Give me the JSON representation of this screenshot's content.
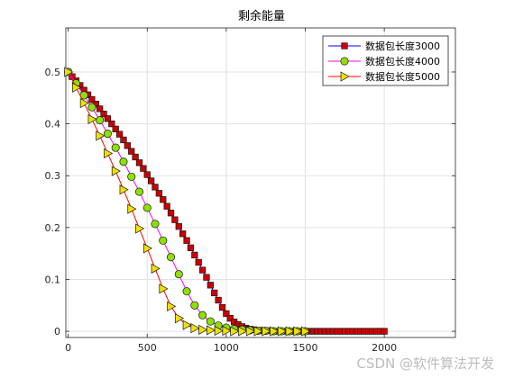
{
  "chart_data": {
    "type": "line",
    "title": "剩余能量",
    "xlabel": "",
    "ylabel": "",
    "xlim": [
      -15,
      2450
    ],
    "ylim": [
      -0.012,
      0.585
    ],
    "xticks": [
      0,
      500,
      1000,
      1500,
      2000
    ],
    "yticks": [
      0,
      0.1,
      0.2,
      0.3,
      0.4,
      0.5
    ],
    "grid": true,
    "legend_position": "top-right",
    "series": [
      {
        "name": "数据包长度3000",
        "line_color": "#0000ff",
        "marker": "square",
        "marker_fill": "#cc0000",
        "x": [
          0,
          25,
          50,
          75,
          100,
          125,
          150,
          175,
          200,
          225,
          250,
          275,
          300,
          325,
          350,
          375,
          400,
          425,
          450,
          475,
          500,
          525,
          550,
          575,
          600,
          625,
          650,
          675,
          700,
          725,
          750,
          775,
          800,
          825,
          850,
          875,
          900,
          925,
          950,
          975,
          1000,
          1025,
          1050,
          1075,
          1100,
          1125,
          1150,
          1175,
          1200,
          1225,
          1250,
          1275,
          1300,
          1325,
          1350,
          1375,
          1400,
          1425,
          1450,
          1475,
          1500,
          1525,
          1550,
          1575,
          1600,
          1625,
          1650,
          1675,
          1700,
          1725,
          1750,
          1775,
          1800,
          1825,
          1850,
          1875,
          1900,
          1925,
          1950,
          1975,
          2000
        ],
        "y": [
          0.5,
          0.491,
          0.483,
          0.474,
          0.465,
          0.456,
          0.447,
          0.438,
          0.429,
          0.419,
          0.41,
          0.4,
          0.39,
          0.38,
          0.369,
          0.358,
          0.347,
          0.336,
          0.325,
          0.314,
          0.302,
          0.29,
          0.278,
          0.266,
          0.254,
          0.241,
          0.228,
          0.215,
          0.202,
          0.188,
          0.175,
          0.161,
          0.147,
          0.133,
          0.118,
          0.104,
          0.089,
          0.074,
          0.06,
          0.046,
          0.034,
          0.025,
          0.018,
          0.013,
          0.009,
          0.006,
          0.004,
          0.003,
          0.002,
          0.001,
          0.001,
          0.001,
          0,
          0,
          0,
          0,
          0,
          0,
          0,
          0,
          0,
          0,
          0,
          0,
          0,
          0,
          0,
          0,
          0,
          0,
          0,
          0,
          0,
          0,
          0,
          0,
          0,
          0,
          0,
          0,
          0
        ]
      },
      {
        "name": "数据包长度4000",
        "line_color": "#ff00ff",
        "marker": "circle",
        "marker_fill": "#8ee000",
        "x": [
          0,
          50,
          100,
          150,
          200,
          250,
          300,
          350,
          400,
          450,
          500,
          550,
          600,
          650,
          700,
          750,
          800,
          850,
          900,
          950,
          1000,
          1050,
          1100,
          1150,
          1200,
          1250,
          1300,
          1350,
          1400,
          1450,
          1500
        ],
        "y": [
          0.5,
          0.478,
          0.455,
          0.432,
          0.407,
          0.381,
          0.354,
          0.327,
          0.298,
          0.269,
          0.238,
          0.207,
          0.175,
          0.143,
          0.11,
          0.077,
          0.05,
          0.031,
          0.019,
          0.011,
          0.007,
          0.004,
          0.003,
          0.002,
          0.001,
          0.001,
          0,
          0,
          0,
          0,
          0
        ]
      },
      {
        "name": "数据包长度5000",
        "line_color": "#ff0000",
        "marker": "triangle-right",
        "marker_fill": "#f0e000",
        "x": [
          0,
          50,
          100,
          150,
          200,
          250,
          300,
          350,
          400,
          450,
          500,
          550,
          600,
          650,
          700,
          750,
          800,
          850,
          900,
          950,
          1000,
          1050,
          1100,
          1150,
          1200,
          1250,
          1300,
          1350,
          1400,
          1450,
          1500
        ],
        "y": [
          0.5,
          0.47,
          0.44,
          0.409,
          0.377,
          0.343,
          0.309,
          0.273,
          0.236,
          0.198,
          0.16,
          0.121,
          0.082,
          0.048,
          0.025,
          0.012,
          0.006,
          0.003,
          0.002,
          0.001,
          0.001,
          0,
          0,
          0,
          0,
          0,
          0,
          0,
          0,
          0,
          0
        ]
      }
    ]
  },
  "watermark": "CSDN @软件算法开发"
}
